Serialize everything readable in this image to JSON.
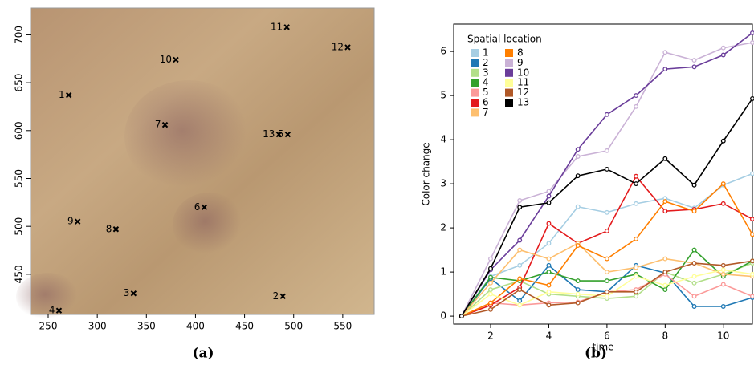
{
  "chart_data": [
    {
      "type": "scatter",
      "caption": "(a)",
      "labels": [
        "1",
        "2",
        "3",
        "4",
        "5",
        "6",
        "7",
        "8",
        "9",
        "10",
        "11",
        "12",
        "13"
      ],
      "x": [
        271,
        489,
        337,
        261,
        494,
        409,
        369,
        319,
        280,
        380,
        493,
        555,
        485
      ],
      "y": [
        637,
        427,
        430,
        412,
        596,
        520,
        606,
        497,
        505,
        674,
        708,
        687,
        596
      ],
      "color": "#000000",
      "xlim": [
        232,
        582
      ],
      "ylim": [
        408,
        728
      ],
      "xticks": [
        250,
        300,
        350,
        400,
        450,
        500,
        550
      ],
      "yticks": [
        450,
        500,
        550,
        600,
        650,
        700
      ]
    },
    {
      "type": "line",
      "caption": "(b)",
      "xlabel": "time",
      "ylabel": "Color change",
      "legend_title": "Spatial location",
      "x": [
        1,
        2,
        3,
        4,
        5,
        6,
        7,
        8,
        9,
        10,
        11
      ],
      "xlim": [
        0.73,
        11.0
      ],
      "ylim": [
        -0.18,
        6.62
      ],
      "xticks": [
        2,
        4,
        6,
        8,
        10
      ],
      "yticks": [
        0,
        1,
        2,
        3,
        4,
        5,
        6
      ],
      "series": [
        {
          "name": "1",
          "color": "#a6cee3",
          "values": [
            0,
            0.9,
            1.15,
            1.65,
            2.48,
            2.35,
            2.55,
            2.67,
            2.45,
            2.97,
            3.23
          ]
        },
        {
          "name": "2",
          "color": "#1f78b4",
          "values": [
            0,
            0.85,
            0.35,
            1.15,
            0.6,
            0.55,
            1.15,
            0.98,
            0.22,
            0.22,
            0.42
          ]
        },
        {
          "name": "3",
          "color": "#b2df8a",
          "values": [
            0,
            0.6,
            0.8,
            0.5,
            0.45,
            0.4,
            0.45,
            1.0,
            0.75,
            0.95,
            1.2
          ]
        },
        {
          "name": "4",
          "color": "#33a02c",
          "values": [
            0,
            0.88,
            0.8,
            1.0,
            0.8,
            0.8,
            0.95,
            0.6,
            1.5,
            0.9,
            1.25
          ]
        },
        {
          "name": "5",
          "color": "#fb9a99",
          "values": [
            0,
            0.3,
            0.25,
            0.3,
            0.32,
            0.55,
            0.6,
            0.95,
            0.45,
            0.72,
            0.45
          ]
        },
        {
          "name": "6",
          "color": "#e31a1c",
          "values": [
            0,
            0.25,
            0.65,
            2.1,
            1.65,
            1.93,
            3.17,
            2.38,
            2.42,
            2.55,
            2.2
          ]
        },
        {
          "name": "7",
          "color": "#fdbf6f",
          "values": [
            0,
            0.75,
            1.5,
            1.3,
            1.65,
            1.0,
            1.1,
            1.3,
            1.2,
            0.95,
            0.9
          ]
        },
        {
          "name": "8",
          "color": "#ff7f00",
          "values": [
            0,
            0.3,
            0.85,
            0.7,
            1.6,
            1.3,
            1.75,
            2.6,
            2.38,
            3.0,
            1.85
          ]
        },
        {
          "name": "9",
          "color": "#cab2d6",
          "values": [
            0,
            1.3,
            2.62,
            2.83,
            3.62,
            3.75,
            4.75,
            5.98,
            5.8,
            6.08,
            6.2
          ]
        },
        {
          "name": "10",
          "color": "#6a3d9a",
          "values": [
            0,
            1.05,
            1.72,
            2.72,
            3.78,
            4.57,
            5.0,
            5.6,
            5.65,
            5.92,
            6.42
          ]
        },
        {
          "name": "11",
          "color": "#ffff99",
          "values": [
            0,
            0.5,
            0.25,
            0.55,
            0.5,
            0.45,
            0.9,
            0.7,
            0.9,
            1.05,
            0.95
          ]
        },
        {
          "name": "12",
          "color": "#b15928",
          "values": [
            0,
            0.15,
            0.6,
            0.25,
            0.3,
            0.55,
            0.55,
            1.0,
            1.2,
            1.15,
            1.25
          ]
        },
        {
          "name": "13",
          "color": "#000000",
          "values": [
            0,
            1.08,
            2.47,
            2.57,
            3.18,
            3.33,
            3.0,
            3.57,
            2.97,
            3.97,
            4.93
          ]
        }
      ]
    }
  ]
}
